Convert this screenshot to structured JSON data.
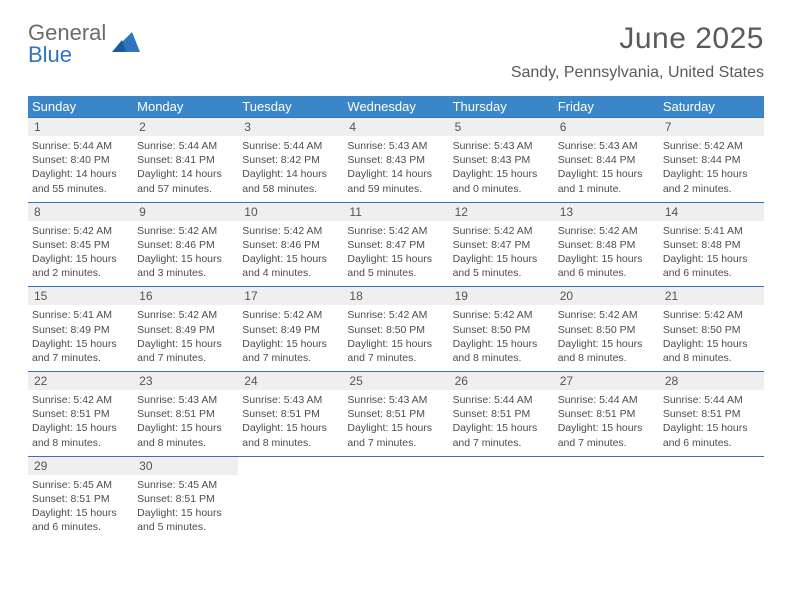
{
  "logo": {
    "line1": "General",
    "line2": "Blue"
  },
  "title": "June 2025",
  "location": "Sandy, Pennsylvania, United States",
  "colors": {
    "header_bar": "#3b86c8",
    "week_border": "#2f74bd",
    "daynum_bg": "#efefef",
    "text_gray": "#4d4d4d",
    "title_gray": "#5a5a5a",
    "logo_blue": "#2f74bd",
    "logo_gray": "#6b6b6b"
  },
  "day_of_week": [
    "Sunday",
    "Monday",
    "Tuesday",
    "Wednesday",
    "Thursday",
    "Friday",
    "Saturday"
  ],
  "weeks": [
    [
      {
        "n": "1",
        "sunrise": "5:44 AM",
        "sunset": "8:40 PM",
        "daylight": "14 hours and 55 minutes."
      },
      {
        "n": "2",
        "sunrise": "5:44 AM",
        "sunset": "8:41 PM",
        "daylight": "14 hours and 57 minutes."
      },
      {
        "n": "3",
        "sunrise": "5:44 AM",
        "sunset": "8:42 PM",
        "daylight": "14 hours and 58 minutes."
      },
      {
        "n": "4",
        "sunrise": "5:43 AM",
        "sunset": "8:43 PM",
        "daylight": "14 hours and 59 minutes."
      },
      {
        "n": "5",
        "sunrise": "5:43 AM",
        "sunset": "8:43 PM",
        "daylight": "15 hours and 0 minutes."
      },
      {
        "n": "6",
        "sunrise": "5:43 AM",
        "sunset": "8:44 PM",
        "daylight": "15 hours and 1 minute."
      },
      {
        "n": "7",
        "sunrise": "5:42 AM",
        "sunset": "8:44 PM",
        "daylight": "15 hours and 2 minutes."
      }
    ],
    [
      {
        "n": "8",
        "sunrise": "5:42 AM",
        "sunset": "8:45 PM",
        "daylight": "15 hours and 2 minutes."
      },
      {
        "n": "9",
        "sunrise": "5:42 AM",
        "sunset": "8:46 PM",
        "daylight": "15 hours and 3 minutes."
      },
      {
        "n": "10",
        "sunrise": "5:42 AM",
        "sunset": "8:46 PM",
        "daylight": "15 hours and 4 minutes."
      },
      {
        "n": "11",
        "sunrise": "5:42 AM",
        "sunset": "8:47 PM",
        "daylight": "15 hours and 5 minutes."
      },
      {
        "n": "12",
        "sunrise": "5:42 AM",
        "sunset": "8:47 PM",
        "daylight": "15 hours and 5 minutes."
      },
      {
        "n": "13",
        "sunrise": "5:42 AM",
        "sunset": "8:48 PM",
        "daylight": "15 hours and 6 minutes."
      },
      {
        "n": "14",
        "sunrise": "5:41 AM",
        "sunset": "8:48 PM",
        "daylight": "15 hours and 6 minutes."
      }
    ],
    [
      {
        "n": "15",
        "sunrise": "5:41 AM",
        "sunset": "8:49 PM",
        "daylight": "15 hours and 7 minutes."
      },
      {
        "n": "16",
        "sunrise": "5:42 AM",
        "sunset": "8:49 PM",
        "daylight": "15 hours and 7 minutes."
      },
      {
        "n": "17",
        "sunrise": "5:42 AM",
        "sunset": "8:49 PM",
        "daylight": "15 hours and 7 minutes."
      },
      {
        "n": "18",
        "sunrise": "5:42 AM",
        "sunset": "8:50 PM",
        "daylight": "15 hours and 7 minutes."
      },
      {
        "n": "19",
        "sunrise": "5:42 AM",
        "sunset": "8:50 PM",
        "daylight": "15 hours and 8 minutes."
      },
      {
        "n": "20",
        "sunrise": "5:42 AM",
        "sunset": "8:50 PM",
        "daylight": "15 hours and 8 minutes."
      },
      {
        "n": "21",
        "sunrise": "5:42 AM",
        "sunset": "8:50 PM",
        "daylight": "15 hours and 8 minutes."
      }
    ],
    [
      {
        "n": "22",
        "sunrise": "5:42 AM",
        "sunset": "8:51 PM",
        "daylight": "15 hours and 8 minutes."
      },
      {
        "n": "23",
        "sunrise": "5:43 AM",
        "sunset": "8:51 PM",
        "daylight": "15 hours and 8 minutes."
      },
      {
        "n": "24",
        "sunrise": "5:43 AM",
        "sunset": "8:51 PM",
        "daylight": "15 hours and 8 minutes."
      },
      {
        "n": "25",
        "sunrise": "5:43 AM",
        "sunset": "8:51 PM",
        "daylight": "15 hours and 7 minutes."
      },
      {
        "n": "26",
        "sunrise": "5:44 AM",
        "sunset": "8:51 PM",
        "daylight": "15 hours and 7 minutes."
      },
      {
        "n": "27",
        "sunrise": "5:44 AM",
        "sunset": "8:51 PM",
        "daylight": "15 hours and 7 minutes."
      },
      {
        "n": "28",
        "sunrise": "5:44 AM",
        "sunset": "8:51 PM",
        "daylight": "15 hours and 6 minutes."
      }
    ],
    [
      {
        "n": "29",
        "sunrise": "5:45 AM",
        "sunset": "8:51 PM",
        "daylight": "15 hours and 6 minutes."
      },
      {
        "n": "30",
        "sunrise": "5:45 AM",
        "sunset": "8:51 PM",
        "daylight": "15 hours and 5 minutes."
      },
      null,
      null,
      null,
      null,
      null
    ]
  ],
  "labels": {
    "sunrise": "Sunrise: ",
    "sunset": "Sunset: ",
    "daylight": "Daylight: "
  }
}
